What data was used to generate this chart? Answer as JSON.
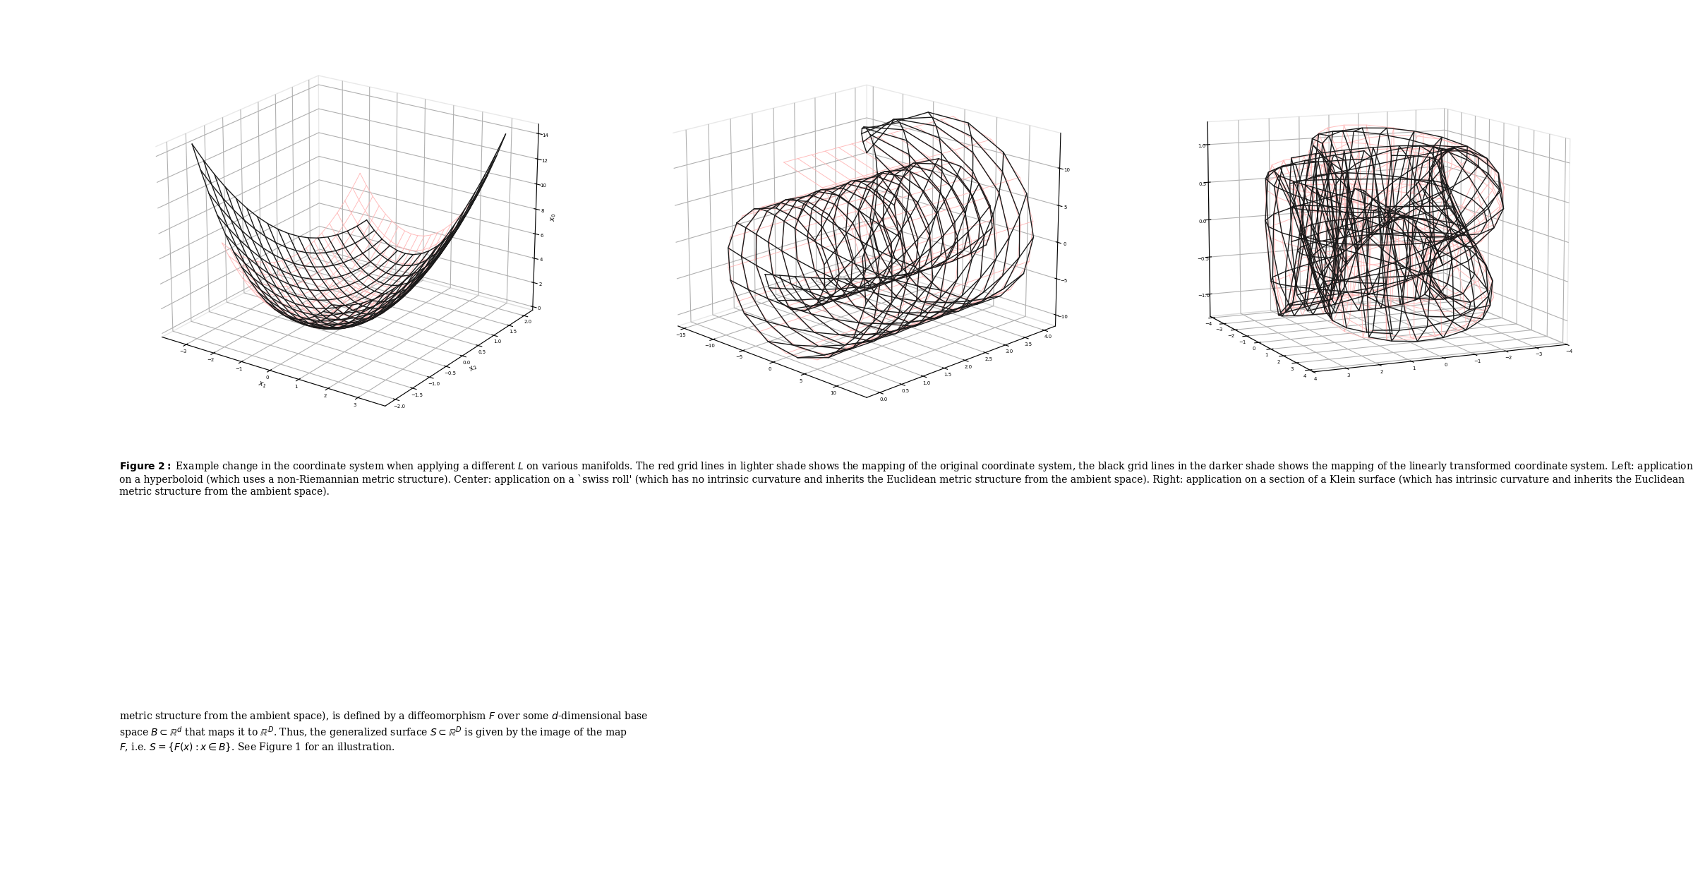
{
  "background_color": "#ffffff",
  "page_bg": "#c8c8c8",
  "fig_width": 24.16,
  "fig_height": 12.44,
  "plot_color_light": "#ffb6b6",
  "plot_color_dark": "#1a1a1a",
  "plot_lw_light": 0.7,
  "plot_lw_dark": 1.0
}
